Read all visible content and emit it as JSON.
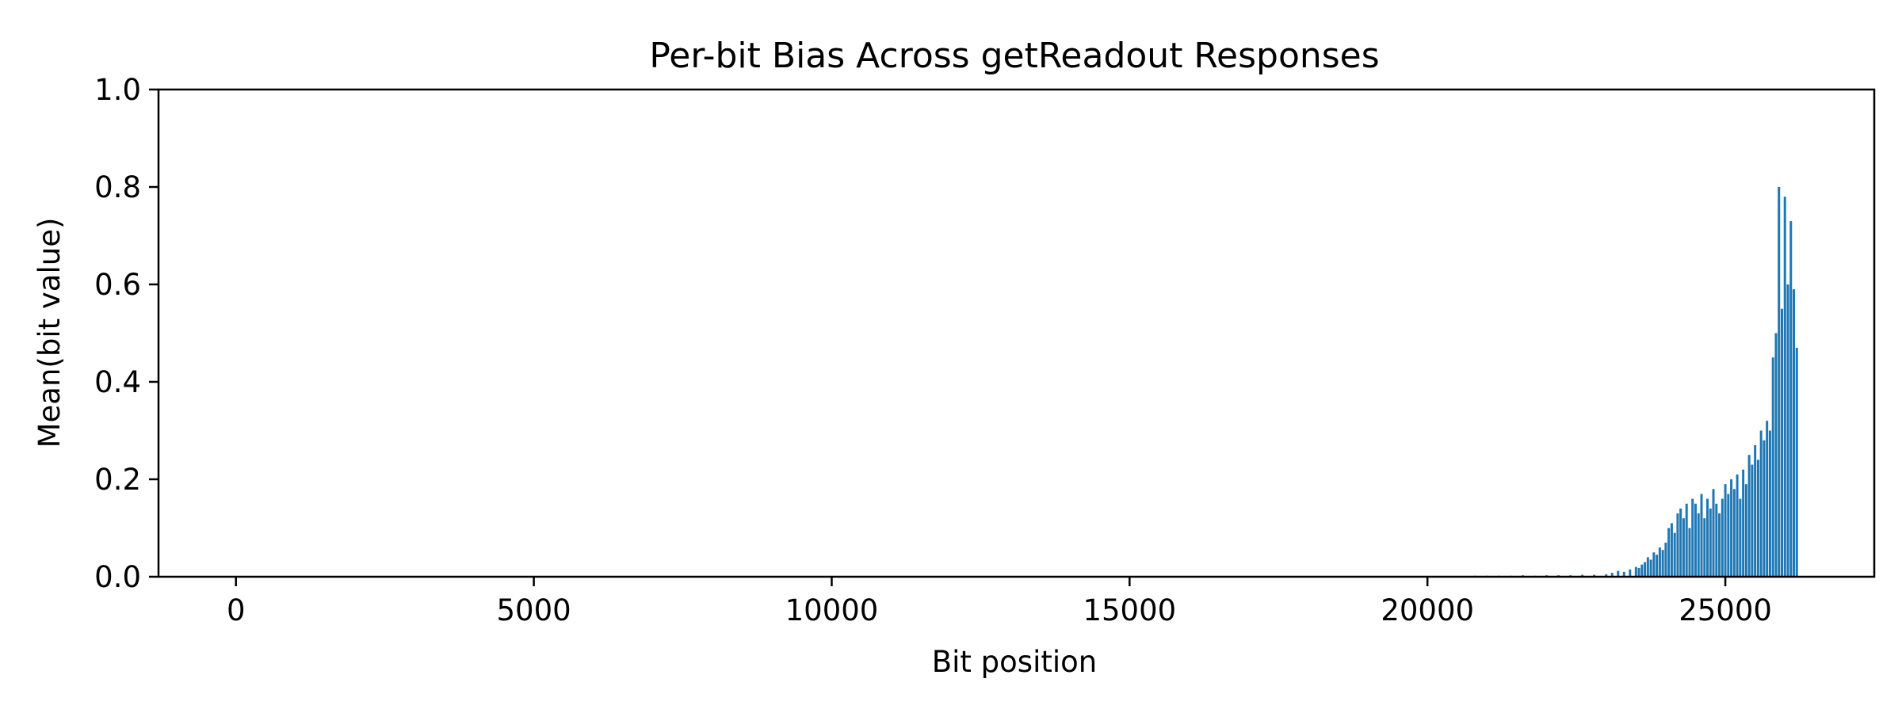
{
  "chart_data": {
    "type": "bar",
    "title": "Per-bit Bias Across getReadout Responses",
    "xlabel": "Bit position",
    "ylabel": "Mean(bit value)",
    "xlim": [
      -1300,
      27500
    ],
    "ylim": [
      0.0,
      1.0
    ],
    "xticks": [
      0,
      5000,
      10000,
      15000,
      20000,
      25000
    ],
    "xtick_labels": [
      "0",
      "5000",
      "10000",
      "15000",
      "20000",
      "25000"
    ],
    "yticks": [
      0.0,
      0.2,
      0.4,
      0.6,
      0.8,
      1.0
    ],
    "ytick_labels": [
      "0.0",
      "0.2",
      "0.4",
      "0.6",
      "0.8",
      "1.0"
    ],
    "grid": false,
    "bar_color": "#1f77b4",
    "series": [
      {
        "x": [
          20800,
          21000,
          21200,
          21400,
          21600,
          21800,
          22000,
          22200,
          22400,
          22600,
          22800,
          23000,
          23100,
          23200,
          23300,
          23400,
          23500,
          23550,
          23600,
          23650,
          23700,
          23750,
          23800,
          23850,
          23900,
          23950,
          24000,
          24050,
          24100,
          24150,
          24200,
          24250,
          24300,
          24350,
          24400,
          24450,
          24500,
          24550,
          24600,
          24650,
          24700,
          24750,
          24800,
          24850,
          24900,
          24950,
          25000,
          25050,
          25100,
          25150,
          25200,
          25250,
          25300,
          25350,
          25400,
          25450,
          25500,
          25550,
          25600,
          25650,
          25700,
          25750,
          25800,
          25850,
          25900,
          25950,
          26000,
          26050,
          26100,
          26150,
          26200
        ],
        "values": [
          0.002,
          0.002,
          0.002,
          0.002,
          0.003,
          0.002,
          0.003,
          0.003,
          0.003,
          0.004,
          0.004,
          0.005,
          0.008,
          0.012,
          0.01,
          0.015,
          0.02,
          0.018,
          0.025,
          0.03,
          0.04,
          0.035,
          0.05,
          0.045,
          0.06,
          0.055,
          0.07,
          0.1,
          0.11,
          0.09,
          0.13,
          0.14,
          0.12,
          0.15,
          0.1,
          0.16,
          0.15,
          0.13,
          0.17,
          0.12,
          0.16,
          0.14,
          0.18,
          0.15,
          0.13,
          0.16,
          0.19,
          0.17,
          0.2,
          0.18,
          0.21,
          0.16,
          0.22,
          0.19,
          0.25,
          0.23,
          0.27,
          0.24,
          0.3,
          0.28,
          0.32,
          0.3,
          0.45,
          0.5,
          0.8,
          0.55,
          0.78,
          0.6,
          0.73,
          0.59,
          0.47
        ]
      }
    ]
  }
}
